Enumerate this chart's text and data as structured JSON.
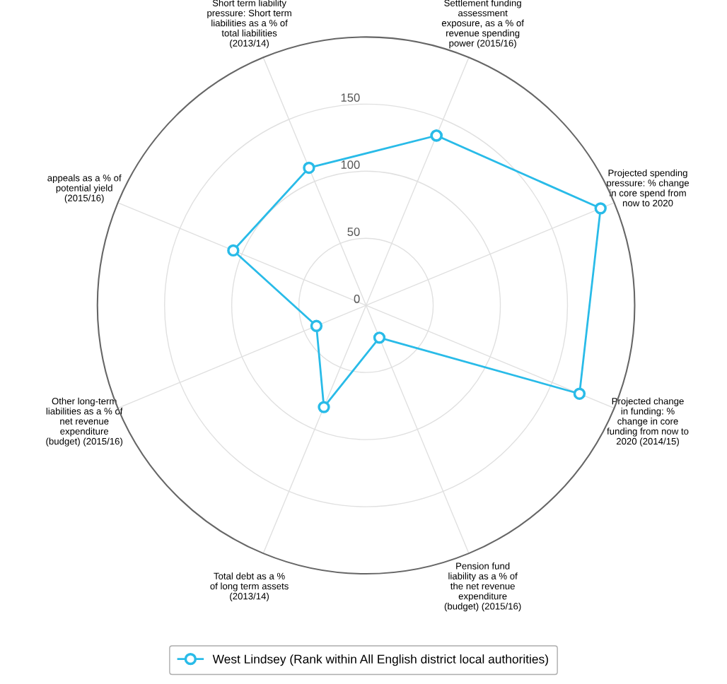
{
  "chart_data": {
    "type": "radar",
    "categories": [
      "Settlement funding\nassessment\nexposure, as a % of\nrevenue spending\npower (2015/16)",
      "Projected spending\npressure: % change\nin core spend from\nnow to 2020",
      "Projected change\nin funding: %\nchange in core\nfunding from now to\n2020 (2014/15)",
      "Pension fund\nliability as a % of\nthe net revenue\nexpenditure\n(budget) (2015/16)",
      "Total debt as a %\nof long term assets\n(2013/14)",
      "Other long-term\nliabilities as a % of\nnet revenue\nexpenditure\n(budget) (2015/16)",
      "appeals as a % of\npotential yield\n(2015/16)",
      "Short term liability\npressure: Short term\nliabilities as a % of\ntotal liabilities\n(2013/14)"
    ],
    "series": [
      {
        "name": "West Lindsey (Rank within All English district local authorities)",
        "color": "#29bbe8",
        "values": [
          137,
          189,
          172,
          26,
          82,
          40,
          107,
          111
        ]
      }
    ],
    "ylim": [
      0,
      200
    ],
    "yticks": [
      0,
      50,
      100,
      150
    ],
    "grid": true,
    "legend": "bottom",
    "marker": "circle",
    "line_style": "solid"
  }
}
